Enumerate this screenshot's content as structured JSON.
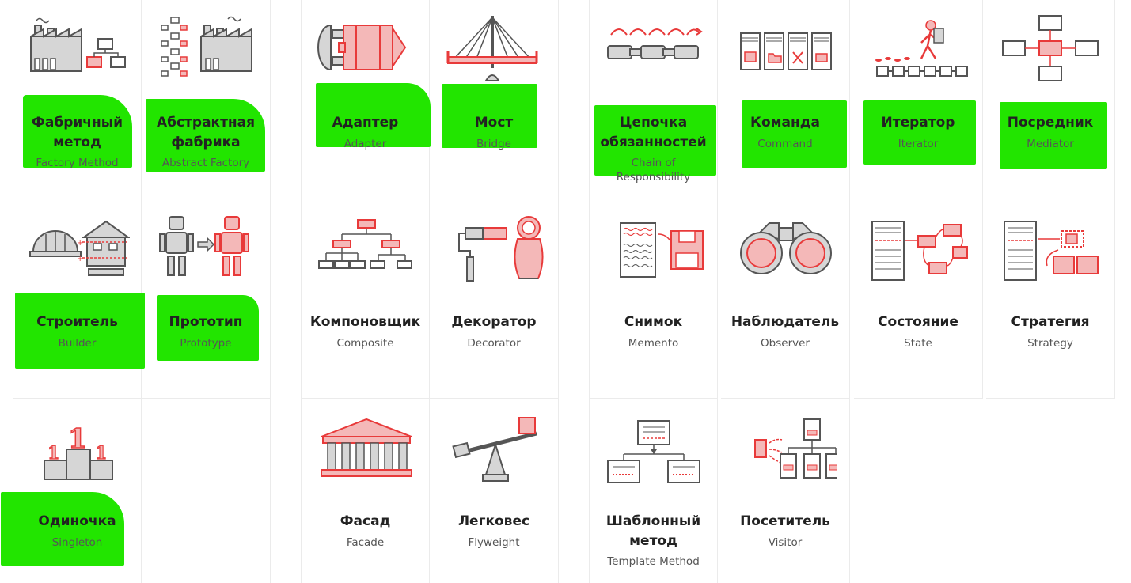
{
  "colors": {
    "accent": "#e83a3a",
    "accent_light": "#f4b8b8",
    "gray": "#d6d6d6",
    "dark": "#555555",
    "highlight": "#22e500",
    "border": "#ebebeb"
  },
  "patterns": {
    "factory_method": {
      "ru": "Фабричный метод",
      "en": "Factory Method",
      "icon": "factory-icon"
    },
    "abstract_factory": {
      "ru": "Абстрактная фабрика",
      "en": "Abstract Factory",
      "icon": "factory-network-icon"
    },
    "builder": {
      "ru": "Строитель",
      "en": "Builder",
      "icon": "hardhat-house-icon"
    },
    "prototype": {
      "ru": "Прототип",
      "en": "Prototype",
      "icon": "robot-clone-icon"
    },
    "singleton": {
      "ru": "Одиночка",
      "en": "Singleton",
      "icon": "podium-icon"
    },
    "adapter": {
      "ru": "Адаптер",
      "en": "Adapter",
      "icon": "plug-adapter-icon"
    },
    "bridge": {
      "ru": "Мост",
      "en": "Bridge",
      "icon": "bridge-icon"
    },
    "composite": {
      "ru": "Компоновщик",
      "en": "Composite",
      "icon": "tree-icon"
    },
    "decorator": {
      "ru": "Декоратор",
      "en": "Decorator",
      "icon": "paint-roller-icon"
    },
    "facade": {
      "ru": "Фасад",
      "en": "Facade",
      "icon": "temple-icon"
    },
    "flyweight": {
      "ru": "Легковес",
      "en": "Flyweight",
      "icon": "seesaw-icon"
    },
    "chain": {
      "ru": "Цепочка обязанностей",
      "en": "Chain of Responsibility",
      "icon": "chain-icon"
    },
    "command": {
      "ru": "Команда",
      "en": "Command",
      "icon": "command-panels-icon"
    },
    "iterator": {
      "ru": "Итератор",
      "en": "Iterator",
      "icon": "hiker-path-icon"
    },
    "mediator": {
      "ru": "Посредник",
      "en": "Mediator",
      "icon": "hub-icon"
    },
    "memento": {
      "ru": "Снимок",
      "en": "Memento",
      "icon": "floppy-icon"
    },
    "observer": {
      "ru": "Наблюдатель",
      "en": "Observer",
      "icon": "binoculars-icon"
    },
    "state": {
      "ru": "Состояние",
      "en": "State",
      "icon": "state-machine-icon"
    },
    "strategy": {
      "ru": "Стратегия",
      "en": "Strategy",
      "icon": "strategy-icon"
    },
    "template_method": {
      "ru": "Шаблонный метод",
      "en": "Template Method",
      "icon": "template-icon"
    },
    "visitor": {
      "ru": "Посетитель",
      "en": "Visitor",
      "icon": "visitor-icon"
    }
  }
}
